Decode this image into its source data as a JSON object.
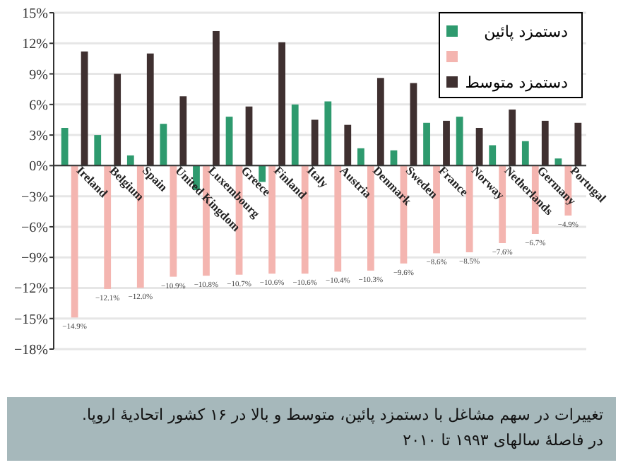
{
  "chart_data": {
    "type": "bar",
    "categories": [
      "Ireland",
      "Belgium",
      "Spain",
      "United Kingdom",
      "Luxembourg",
      "Greece",
      "Finland",
      "Italy",
      "Austria",
      "Denmark",
      "Sweden",
      "France",
      "Norway",
      "Netherlands",
      "Germany",
      "Portugal"
    ],
    "series": [
      {
        "name": "دستمزد پائین",
        "color": "#2e9a6e",
        "values": [
          3.7,
          3.0,
          1.0,
          4.1,
          -2.4,
          4.8,
          -1.6,
          6.0,
          6.3,
          1.7,
          1.5,
          4.2,
          4.8,
          2.0,
          2.4,
          0.7
        ]
      },
      {
        "color": "#f4b5b0",
        "values": [
          -14.9,
          -12.1,
          -12.0,
          -10.9,
          -10.8,
          -10.7,
          -10.6,
          -10.6,
          -10.4,
          -10.3,
          -9.6,
          -8.6,
          -8.5,
          -7.6,
          -6.7,
          -4.9
        ],
        "value_labels": [
          "−14.9%",
          "−12.1%",
          "−12.0%",
          "−10.9%",
          "−10.8%",
          "−10.7%",
          "−10.6%",
          "−10.6%",
          "−10.4%",
          "−10.3%",
          "−9.6%",
          "−8.6%",
          "−8.5%",
          "−7.6%",
          "−6.7%",
          "−4.9%"
        ]
      },
      {
        "name": "دستمزد متوسط",
        "color": "#3f3030",
        "values": [
          11.2,
          9.0,
          11.0,
          6.8,
          13.2,
          5.8,
          12.1,
          4.5,
          4.0,
          8.6,
          8.1,
          4.4,
          3.7,
          5.5,
          4.4,
          4.2
        ]
      }
    ],
    "ylim": [
      -18,
      15
    ],
    "yticks": [
      {
        "value": -18,
        "label": "−18%"
      },
      {
        "value": -15,
        "label": "−15%"
      },
      {
        "value": -12,
        "label": "−12%"
      },
      {
        "value": -9,
        "label": "−9%"
      },
      {
        "value": -6,
        "label": "−6%"
      },
      {
        "value": -3,
        "label": "−3%"
      },
      {
        "value": 0,
        "label": "0%"
      },
      {
        "value": 3,
        "label": "3%"
      },
      {
        "value": 6,
        "label": "6%"
      },
      {
        "value": 9,
        "label": "9%"
      },
      {
        "value": 12,
        "label": "12%"
      },
      {
        "value": 15,
        "label": "15%"
      }
    ],
    "grid": "y",
    "legend": "top right",
    "annotations": [
      "تغییرات در سهم مشاغل با دستمزد پائین، متوسط و بالا در ۱۶ کشور اتحادیهٔ اروپا.",
      "در فاصلهٔ سالهای ۱۹۹۳ تا ۲۰۱۰"
    ]
  }
}
